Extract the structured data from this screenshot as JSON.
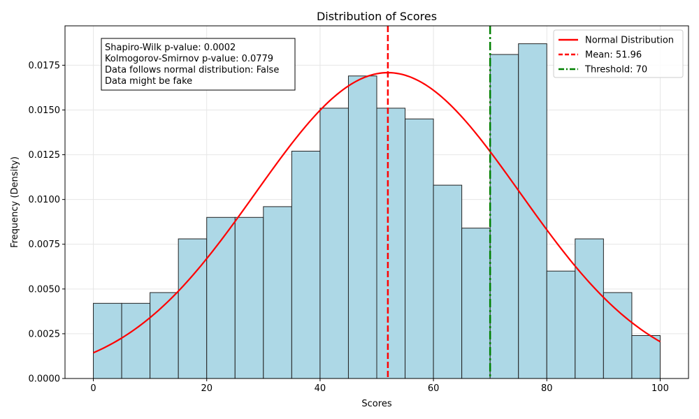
{
  "chart_data": {
    "type": "bar",
    "title": "Distribution of Scores",
    "xlabel": "Scores",
    "ylabel": "Frequency (Density)",
    "xlim": [
      -5,
      105
    ],
    "ylim": [
      0,
      0.0197
    ],
    "grid": true,
    "xticks": [
      0,
      20,
      40,
      60,
      80,
      100
    ],
    "yticks": [
      0.0,
      0.0025,
      0.005,
      0.0075,
      0.01,
      0.0125,
      0.015,
      0.0175
    ],
    "ytick_labels": [
      "0.0000",
      "0.0025",
      "0.0050",
      "0.0075",
      "0.0100",
      "0.0125",
      "0.0150",
      "0.0175"
    ],
    "bin_edges": [
      0,
      5,
      10,
      15,
      20,
      25,
      30,
      35,
      40,
      45,
      50,
      55,
      60,
      65,
      70,
      75,
      80,
      85,
      90,
      95,
      100
    ],
    "values": [
      0.0042,
      0.0042,
      0.0048,
      0.0078,
      0.009,
      0.009,
      0.0096,
      0.0127,
      0.0151,
      0.0169,
      0.0151,
      0.0145,
      0.0108,
      0.0084,
      0.0181,
      0.0187,
      0.006,
      0.0078,
      0.0048,
      0.0024
    ],
    "bar_color": "#add8e6",
    "bar_edge_color": "#222222",
    "normal_curve": {
      "name": "Normal Distribution",
      "mean": 51.96,
      "std": 23.35,
      "x_range": [
        0,
        100
      ],
      "color": "#ff0000"
    },
    "mean_line": {
      "name": "Mean: 51.96",
      "x": 51.96,
      "color": "#ff0000",
      "style": "dashed"
    },
    "threshold_line": {
      "name": "Threshold: 70",
      "x": 70,
      "color": "#008000",
      "style": "dashdot"
    },
    "legend_position": "top-right",
    "annotation": {
      "lines": [
        "Shapiro-Wilk p-value: 0.0002",
        "Kolmogorov-Smirnov p-value: 0.0779",
        "Data follows normal distribution: False",
        "Data might be fake"
      ],
      "position": "top-left"
    }
  }
}
